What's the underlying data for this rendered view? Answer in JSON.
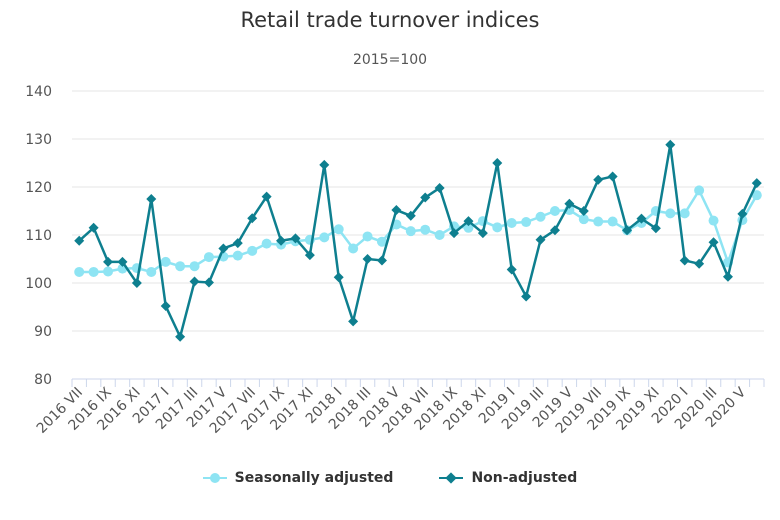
{
  "header": {
    "title": "Retail trade turnover indices",
    "subtitle": "2015=100"
  },
  "legend": {
    "items": [
      {
        "label": "Seasonally adjusted",
        "color": "#8ee4f3",
        "marker": "circle"
      },
      {
        "label": "Non-adjusted",
        "color": "#0e7f8f",
        "marker": "diamond"
      }
    ]
  },
  "chart_data": {
    "type": "line",
    "title": "Retail trade turnover indices",
    "subtitle": "2015=100",
    "xlabel": "",
    "ylabel": "",
    "ylim": [
      80,
      140
    ],
    "yticks": [
      80,
      90,
      100,
      110,
      120,
      130,
      140
    ],
    "grid": true,
    "legend_position": "bottom",
    "tick_labels": [
      "2016 VII",
      "2016 IX",
      "2016 XI",
      "2017 I",
      "2017 III",
      "2017 V",
      "2017 VII",
      "2017 IX",
      "2017 XI",
      "2018 I",
      "2018 III",
      "2018 V",
      "2018 VII",
      "2018 IX",
      "2018 XI",
      "2019 I",
      "2019 III",
      "2019 V",
      "2019 VII",
      "2019 IX",
      "2019 XI",
      "2020 I",
      "2020 III",
      "2020 V"
    ],
    "categories": [
      "2016 VII",
      "2016 VIII",
      "2016 IX",
      "2016 X",
      "2016 XI",
      "2016 XII",
      "2017 I",
      "2017 II",
      "2017 III",
      "2017 IV",
      "2017 V",
      "2017 VI",
      "2017 VII",
      "2017 VIII",
      "2017 IX",
      "2017 X",
      "2017 XI",
      "2017 XII",
      "2018 I",
      "2018 II",
      "2018 III",
      "2018 IV",
      "2018 V",
      "2018 VI",
      "2018 VII",
      "2018 VIII",
      "2018 IX",
      "2018 X",
      "2018 XI",
      "2018 XII",
      "2019 I",
      "2019 II",
      "2019 III",
      "2019 IV",
      "2019 V",
      "2019 VI",
      "2019 VII",
      "2019 VIII",
      "2019 IX",
      "2019 X",
      "2019 XI",
      "2019 XII",
      "2020 I",
      "2020 II",
      "2020 III",
      "2020 IV",
      "2020 V",
      "2020 VI"
    ],
    "series": [
      {
        "name": "Seasonally adjusted",
        "color": "#8ee4f3",
        "marker": "circle",
        "values": [
          102.3,
          102.3,
          102.4,
          103.0,
          103.1,
          102.3,
          104.4,
          103.5,
          103.5,
          105.4,
          105.5,
          105.7,
          106.7,
          108.2,
          108.0,
          108.7,
          109.0,
          109.5,
          111.2,
          107.2,
          109.7,
          108.6,
          112.2,
          110.8,
          111.1,
          110.0,
          111.8,
          111.5,
          112.9,
          111.6,
          112.5,
          112.7,
          113.8,
          115.0,
          115.2,
          113.3,
          112.8,
          112.8,
          111.0,
          112.5,
          115.0,
          114.5,
          114.5,
          119.3,
          113.0,
          104.3,
          113.1,
          118.3
        ]
      },
      {
        "name": "Non-adjusted",
        "color": "#0e7f8f",
        "marker": "diamond",
        "values": [
          108.8,
          111.5,
          104.4,
          104.4,
          100.0,
          117.5,
          95.2,
          88.8,
          100.3,
          100.1,
          107.2,
          108.3,
          113.5,
          118.0,
          108.8,
          109.3,
          105.8,
          124.6,
          101.2,
          92.0,
          105.0,
          104.7,
          115.2,
          114.0,
          117.8,
          119.8,
          110.4,
          112.9,
          110.4,
          125.0,
          102.8,
          97.2,
          109.0,
          111.0,
          116.5,
          115.0,
          121.5,
          122.2,
          111.0,
          113.4,
          111.4,
          128.8,
          104.7,
          104.0,
          108.5,
          101.3,
          114.4,
          120.8
        ]
      }
    ]
  }
}
